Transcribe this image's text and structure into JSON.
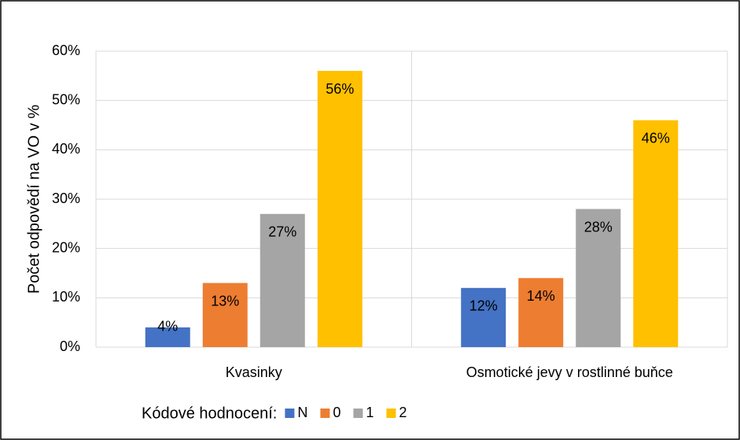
{
  "chart_data": {
    "type": "bar",
    "y_label": "Počet odpovědí  na VO v %",
    "categories": [
      "Kvasinky",
      "Osmotické jevy v rostlinné buňce"
    ],
    "legend_title": "Kódové hodnocení:",
    "series": [
      {
        "name": "N",
        "color": "#4472c4",
        "values": [
          4,
          12
        ],
        "value_labels": [
          "4%",
          "12%"
        ]
      },
      {
        "name": "0",
        "color": "#ed7d31",
        "values": [
          13,
          14
        ],
        "value_labels": [
          "13%",
          "14%"
        ]
      },
      {
        "name": "1",
        "color": "#a5a5a5",
        "values": [
          27,
          28
        ],
        "value_labels": [
          "27%",
          "28%"
        ]
      },
      {
        "name": "2",
        "color": "#ffc000",
        "values": [
          56,
          46
        ],
        "value_labels": [
          "56%",
          "46%"
        ]
      }
    ],
    "ylim": [
      0,
      60
    ],
    "yticks": [
      {
        "value": 0,
        "label": "0%"
      },
      {
        "value": 10,
        "label": "10%"
      },
      {
        "value": 20,
        "label": "20%"
      },
      {
        "value": 30,
        "label": "30%"
      },
      {
        "value": 40,
        "label": "40%"
      },
      {
        "value": 50,
        "label": "50%"
      },
      {
        "value": 60,
        "label": "60%"
      }
    ],
    "grid": true,
    "legend": "bottom"
  }
}
